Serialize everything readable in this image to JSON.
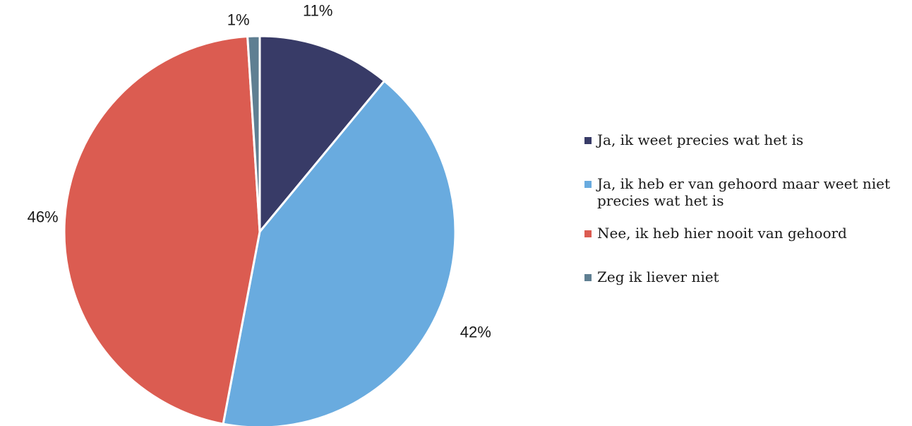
{
  "chart_data": {
    "type": "pie",
    "title": "",
    "start_angle_deg": 0,
    "direction": "clockwise",
    "legend_position": "right",
    "slices": [
      {
        "label": "Ja, ik weet precies wat het is",
        "value": 11,
        "display": "11%",
        "color": "#383b67"
      },
      {
        "label": "Ja, ik heb er van gehoord maar weet niet precies wat het is",
        "value": 42,
        "display": "42%",
        "color": "#69abdf"
      },
      {
        "label": "Nee, ik heb hier nooit van gehoord",
        "value": 46,
        "display": "46%",
        "color": "#db5c51"
      },
      {
        "label": "Zeg ik liever niet",
        "value": 1,
        "display": "1%",
        "color": "#5f7f92"
      }
    ]
  }
}
